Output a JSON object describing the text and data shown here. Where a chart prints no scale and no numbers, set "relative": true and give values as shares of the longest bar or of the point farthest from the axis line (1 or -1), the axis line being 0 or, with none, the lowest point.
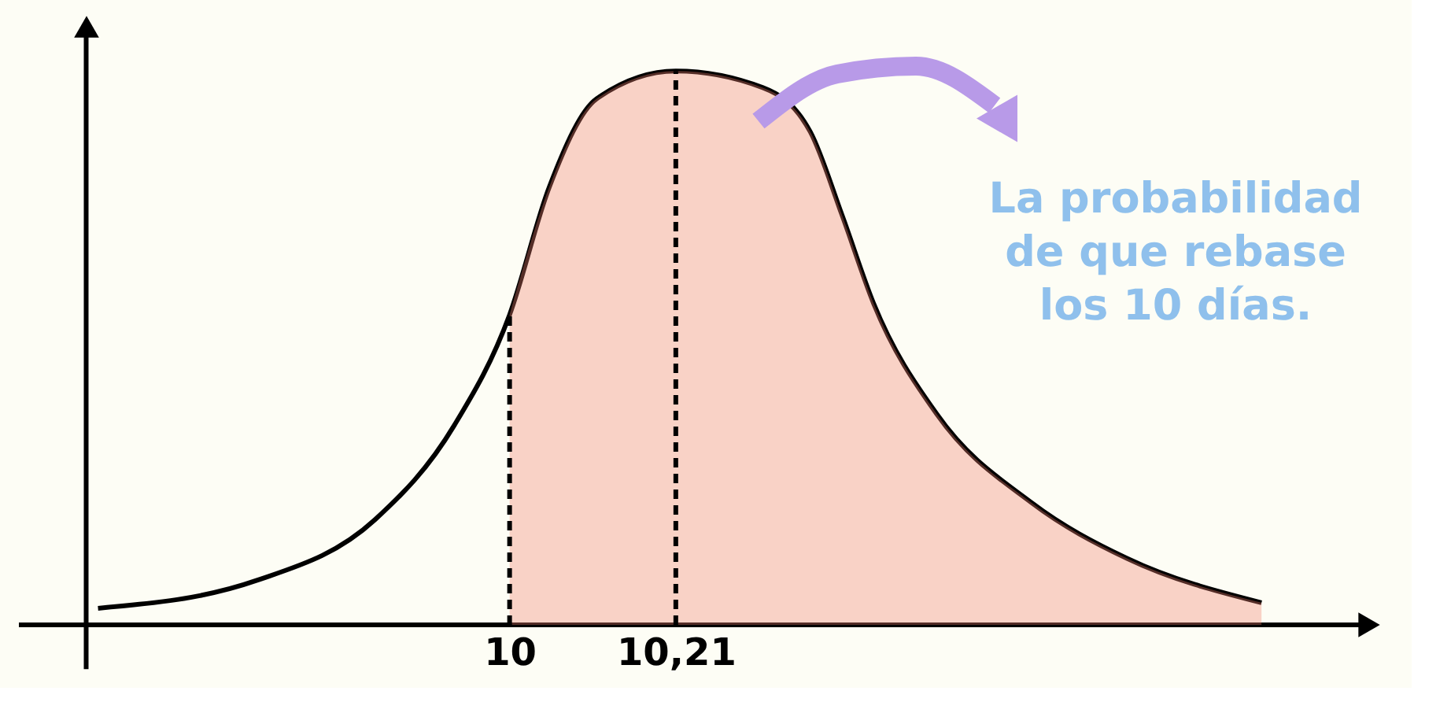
{
  "chart_data": {
    "type": "line",
    "relative": true,
    "x": [
      9.48,
      9.68,
      9.83,
      9.93,
      10.0,
      10.05,
      10.11,
      10.21,
      10.32,
      10.38,
      10.42,
      10.46,
      10.54,
      10.66,
      10.78,
      10.95
    ],
    "series": [
      {
        "type": "line",
        "color": "#000000",
        "values": [
          0.03,
          0.08,
          0.19,
          0.36,
          0.56,
          0.79,
          0.95,
          1.0,
          0.97,
          0.89,
          0.74,
          0.58,
          0.38,
          0.22,
          0.12,
          0.04
        ]
      },
      {
        "type": "area",
        "color": "#f08070",
        "x": [
          10.0,
          10.05,
          10.11,
          10.21,
          10.32,
          10.38,
          10.42,
          10.46,
          10.54,
          10.66,
          10.78,
          10.95
        ],
        "values": [
          0.56,
          0.79,
          0.95,
          1.0,
          0.97,
          0.89,
          0.74,
          0.58,
          0.38,
          0.22,
          0.12,
          0.04
        ]
      }
    ],
    "xlim": [
      9.38,
      11.09
    ],
    "xticks": [
      10,
      {
        "value": 10.21,
        "label": "10,21"
      }
    ],
    "ref_lines": [
      {
        "axis": "x",
        "value": 9.465,
        "color": "#000000",
        "line_style": "solid"
      },
      {
        "axis": "x",
        "value": 10,
        "color": "#000000",
        "line_style": "dashed"
      },
      {
        "axis": "x",
        "value": 10.21,
        "color": "#000000",
        "line_style": "dashed"
      }
    ],
    "annotations": [
      "La probabilidad de que rebase los 10 días."
    ],
    "grid": false
  }
}
